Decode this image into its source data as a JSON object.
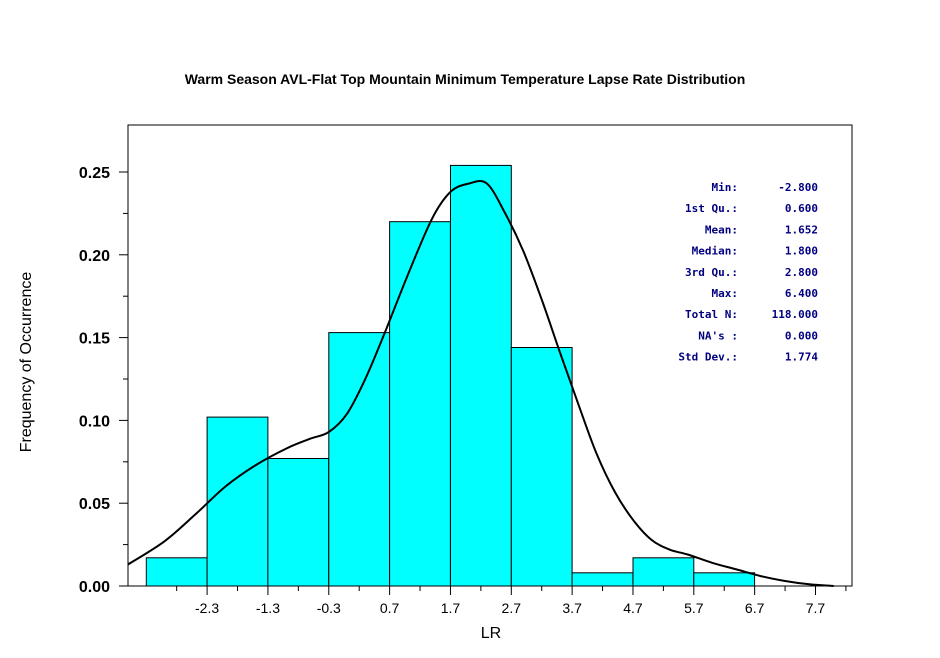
{
  "chart_data": {
    "type": "bar",
    "title": "Warm Season AVL-Flat Top Mountain Minimum Temperature Lapse Rate Distribution",
    "xlabel": "LR",
    "ylabel": "Frequency of Occurrence",
    "xlim": [
      -3.6,
      8.3
    ],
    "ylim": [
      0,
      0.25
    ],
    "x_ticks": [
      -2.3,
      -1.3,
      -0.3,
      0.7,
      1.7,
      2.7,
      3.7,
      4.7,
      5.7,
      6.7,
      7.7
    ],
    "x_tick_labels": [
      "-2.3",
      "-1.3",
      "-0.3",
      "0.7",
      "1.7",
      "2.7",
      "3.7",
      "4.7",
      "5.7",
      "6.7",
      "7.7"
    ],
    "y_ticks": [
      0,
      0.05,
      0.1,
      0.15,
      0.2,
      0.25
    ],
    "y_tick_labels": [
      "0.00",
      "0.05",
      "0.10",
      "0.15",
      "0.20",
      "0.25"
    ],
    "bins": [
      {
        "from": -3.3,
        "to": -2.3,
        "value": 0.017
      },
      {
        "from": -2.3,
        "to": -1.3,
        "value": 0.102
      },
      {
        "from": -1.3,
        "to": -0.3,
        "value": 0.077
      },
      {
        "from": -0.3,
        "to": 0.7,
        "value": 0.153
      },
      {
        "from": 0.7,
        "to": 1.7,
        "value": 0.22
      },
      {
        "from": 1.7,
        "to": 2.7,
        "value": 0.254
      },
      {
        "from": 2.7,
        "to": 3.7,
        "value": 0.144
      },
      {
        "from": 3.7,
        "to": 4.7,
        "value": 0.008
      },
      {
        "from": 4.7,
        "to": 5.7,
        "value": 0.017
      },
      {
        "from": 5.7,
        "to": 6.7,
        "value": 0.008
      }
    ],
    "density_curve": {
      "x": [
        -3.6,
        -3.0,
        -2.5,
        -2.0,
        -1.5,
        -1.0,
        -0.6,
        -0.3,
        0.0,
        0.3,
        0.6,
        1.0,
        1.4,
        1.7,
        2.0,
        2.3,
        2.6,
        2.9,
        3.2,
        3.5,
        3.8,
        4.1,
        4.4,
        4.7,
        5.0,
        5.3,
        5.6,
        6.0,
        6.4,
        6.8,
        7.2,
        7.6,
        8.0
      ],
      "y": [
        0.013,
        0.027,
        0.043,
        0.06,
        0.073,
        0.083,
        0.089,
        0.093,
        0.104,
        0.125,
        0.151,
        0.188,
        0.222,
        0.238,
        0.243,
        0.243,
        0.225,
        0.202,
        0.173,
        0.141,
        0.11,
        0.08,
        0.057,
        0.04,
        0.028,
        0.022,
        0.019,
        0.014,
        0.01,
        0.006,
        0.003,
        0.001,
        0.0
      ]
    },
    "bar_color": "#00ffff",
    "bar_edge_color": "#000000",
    "curve_color": "#000000",
    "grid": false,
    "stats_box": {
      "color": "#000080",
      "labels": [
        "Min:",
        "1st Qu.:",
        "Mean:",
        "Median:",
        "3rd Qu.:",
        "Max:",
        "Total N:",
        "NA's :",
        "Std Dev.:"
      ],
      "values": [
        "-2.800",
        "0.600",
        "1.652",
        "1.800",
        "2.800",
        "6.400",
        "118.000",
        "0.000",
        "1.774"
      ]
    }
  }
}
